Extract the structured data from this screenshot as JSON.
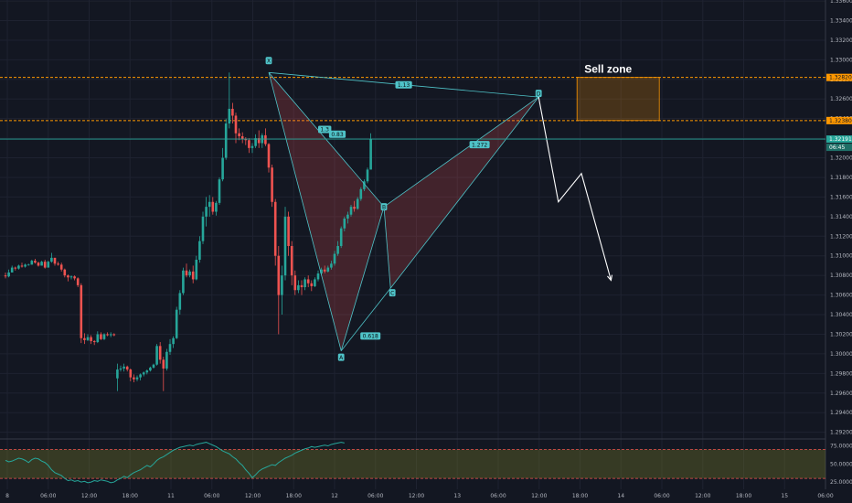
{
  "chart_data": {
    "type": "candlestick",
    "price_axis": {
      "ticks": [
        "1.33600",
        "1.33400",
        "1.33200",
        "1.33000",
        "1.32800",
        "1.32600",
        "1.32400",
        "1.32200",
        "1.32000",
        "1.31800",
        "1.31600",
        "1.31400",
        "1.31200",
        "1.31000",
        "1.30800",
        "1.30600",
        "1.30400",
        "1.30200",
        "1.30000",
        "1.29800",
        "1.29600",
        "1.29400",
        "1.29200"
      ],
      "range": [
        1.2915,
        1.3361
      ]
    },
    "time_axis": {
      "labels": [
        "8",
        "06:00",
        "12:00",
        "18:00",
        "11",
        "06:00",
        "12:00",
        "18:00",
        "12",
        "06:00",
        "12:00",
        "13",
        "06:00",
        "12:00",
        "18:00",
        "14",
        "06:00",
        "12:00",
        "18:00",
        "15",
        "06:00"
      ]
    },
    "sell_zone": {
      "title": "Sell zone",
      "upper": 1.3282,
      "lower": 1.3238,
      "upper_label": "1.32820",
      "lower_label": "1.32380"
    },
    "current_price": {
      "value": 1.32191,
      "label": "1.32191",
      "countdown": "06:45"
    },
    "pattern_labels": {
      "point_x": "X",
      "point_a": "A",
      "point_b": "B",
      "point_c": "C",
      "point_d": "D",
      "ratio_xb": "0.83",
      "ratio_ac": "0.618",
      "ratio_bd": "1.272",
      "ratio_xd": "1.13",
      "ratio_ab": "1.3"
    },
    "pattern_points": [
      {
        "name": "X",
        "bar": 80,
        "price": 1.3287
      },
      {
        "name": "A",
        "bar": 102,
        "price": 1.3003
      },
      {
        "name": "B",
        "bar": 115,
        "price": 1.315
      },
      {
        "name": "C",
        "bar": 117,
        "price": 1.3067
      },
      {
        "name": "D",
        "bar": 162,
        "price": 1.3262
      }
    ],
    "projection": [
      {
        "bar": 162,
        "price": 1.3262
      },
      {
        "bar": 168,
        "price": 1.3155
      },
      {
        "bar": 175,
        "price": 1.3184
      },
      {
        "bar": 184,
        "price": 1.3075
      }
    ],
    "candles": [
      [
        1.308,
        1.3083,
        1.3077,
        1.3079
      ],
      [
        1.3079,
        1.3086,
        1.3078,
        1.3083
      ],
      [
        1.3083,
        1.309,
        1.3083,
        1.3088
      ],
      [
        1.3088,
        1.3089,
        1.3085,
        1.3087
      ],
      [
        1.3087,
        1.3091,
        1.3086,
        1.309
      ],
      [
        1.309,
        1.3093,
        1.3088,
        1.3089
      ],
      [
        1.3089,
        1.3092,
        1.3088,
        1.3091
      ],
      [
        1.3091,
        1.3092,
        1.309,
        1.3091
      ],
      [
        1.3091,
        1.3096,
        1.3091,
        1.3095
      ],
      [
        1.3095,
        1.3097,
        1.3092,
        1.3093
      ],
      [
        1.3093,
        1.3094,
        1.3089,
        1.309
      ],
      [
        1.309,
        1.3095,
        1.309,
        1.3094
      ],
      [
        1.3094,
        1.3096,
        1.3087,
        1.3088
      ],
      [
        1.3088,
        1.3095,
        1.3088,
        1.3094
      ],
      [
        1.3094,
        1.3103,
        1.3093,
        1.3098
      ],
      [
        1.3098,
        1.3098,
        1.309,
        1.3092
      ],
      [
        1.3092,
        1.3094,
        1.309,
        1.3091
      ],
      [
        1.3091,
        1.3093,
        1.3084,
        1.3086
      ],
      [
        1.3086,
        1.3087,
        1.3078,
        1.308
      ],
      [
        1.308,
        1.3081,
        1.3074,
        1.3078
      ],
      [
        1.3078,
        1.308,
        1.3076,
        1.3079
      ],
      [
        1.3079,
        1.308,
        1.3075,
        1.3077
      ],
      [
        1.3077,
        1.3078,
        1.3068,
        1.307
      ],
      [
        1.307,
        1.3072,
        1.3011,
        1.3016
      ],
      [
        1.3016,
        1.3021,
        1.301,
        1.3014
      ],
      [
        1.3014,
        1.302,
        1.3013,
        1.3017
      ],
      [
        1.3017,
        1.3019,
        1.301,
        1.3013
      ],
      [
        1.3013,
        1.3014,
        1.3009,
        1.3012
      ],
      [
        1.3012,
        1.3023,
        1.3011,
        1.302
      ],
      [
        1.302,
        1.3022,
        1.3014,
        1.3015
      ],
      [
        1.3015,
        1.3021,
        1.3014,
        1.302
      ],
      [
        1.302,
        1.3022,
        1.3018,
        1.3019
      ],
      [
        1.3019,
        1.3022,
        1.3017,
        1.302
      ],
      [
        1.302,
        1.3021,
        1.3018,
        1.3019
      ],
      [
        1.2975,
        1.299,
        1.2962,
        1.2984
      ],
      [
        1.2984,
        1.2988,
        1.2982,
        1.2985
      ],
      [
        1.2985,
        1.299,
        1.2982,
        1.2987
      ],
      [
        1.2987,
        1.2988,
        1.2982,
        1.2984
      ],
      [
        1.2984,
        1.2985,
        1.2972,
        1.2976
      ],
      [
        1.2976,
        1.2979,
        1.2971,
        1.2974
      ],
      [
        1.2974,
        1.2978,
        1.2972,
        1.2976
      ],
      [
        1.2976,
        1.298,
        1.2973,
        1.2979
      ],
      [
        1.2979,
        1.2982,
        1.2977,
        1.2981
      ],
      [
        1.2981,
        1.2984,
        1.2979,
        1.2983
      ],
      [
        1.2983,
        1.2987,
        1.2982,
        1.2986
      ],
      [
        1.2986,
        1.299,
        1.2985,
        1.2989
      ],
      [
        1.2989,
        1.301,
        1.2988,
        1.3008
      ],
      [
        1.3008,
        1.3012,
        1.299,
        1.2994
      ],
      [
        1.2994,
        1.2997,
        1.2962,
        1.2985
      ],
      [
        1.2985,
        1.3005,
        1.2983,
        1.3002
      ],
      [
        1.3002,
        1.3015,
        1.2999,
        1.301
      ],
      [
        1.301,
        1.3018,
        1.3006,
        1.3016
      ],
      [
        1.3016,
        1.3048,
        1.3015,
        1.3045
      ],
      [
        1.3045,
        1.3065,
        1.304,
        1.3062
      ],
      [
        1.3062,
        1.3088,
        1.306,
        1.3085
      ],
      [
        1.3085,
        1.3092,
        1.3078,
        1.308
      ],
      [
        1.308,
        1.3086,
        1.3078,
        1.3084
      ],
      [
        1.3084,
        1.309,
        1.3072,
        1.3076
      ],
      [
        1.3076,
        1.31,
        1.3075,
        1.3096
      ],
      [
        1.3096,
        1.312,
        1.3093,
        1.3115
      ],
      [
        1.3115,
        1.3145,
        1.3112,
        1.314
      ],
      [
        1.314,
        1.316,
        1.313,
        1.315
      ],
      [
        1.315,
        1.3162,
        1.314,
        1.3155
      ],
      [
        1.3155,
        1.316,
        1.3142,
        1.3145
      ],
      [
        1.3145,
        1.3156,
        1.3141,
        1.3154
      ],
      [
        1.3154,
        1.318,
        1.3152,
        1.3178
      ],
      [
        1.3178,
        1.321,
        1.3176,
        1.32
      ],
      [
        1.32,
        1.324,
        1.3198,
        1.3235
      ],
      [
        1.3235,
        1.3287,
        1.323,
        1.325
      ],
      [
        1.325,
        1.3256,
        1.3235,
        1.3243
      ],
      [
        1.3243,
        1.3246,
        1.3215,
        1.3225
      ],
      [
        1.3225,
        1.323,
        1.3218,
        1.3222
      ],
      [
        1.3222,
        1.3226,
        1.3215,
        1.3219
      ],
      [
        1.3219,
        1.3221,
        1.3213,
        1.3218
      ],
      [
        1.3218,
        1.322,
        1.3205,
        1.321
      ],
      [
        1.321,
        1.3215,
        1.3205,
        1.3212
      ],
      [
        1.3212,
        1.3224,
        1.321,
        1.322
      ],
      [
        1.322,
        1.3228,
        1.321,
        1.3215
      ],
      [
        1.3215,
        1.3225,
        1.321,
        1.3223
      ],
      [
        1.3223,
        1.323,
        1.3212,
        1.3214
      ],
      [
        1.3214,
        1.3215,
        1.3185,
        1.319
      ],
      [
        1.319,
        1.3193,
        1.315,
        1.3155
      ],
      [
        1.3155,
        1.3158,
        1.309,
        1.31
      ],
      [
        1.31,
        1.311,
        1.302,
        1.306
      ],
      [
        1.306,
        1.309,
        1.304,
        1.308
      ],
      [
        1.308,
        1.315,
        1.3075,
        1.314
      ],
      [
        1.314,
        1.3145,
        1.31,
        1.311
      ],
      [
        1.311,
        1.3115,
        1.307,
        1.308
      ],
      [
        1.308,
        1.3085,
        1.306,
        1.3065
      ],
      [
        1.3065,
        1.3075,
        1.3062,
        1.307
      ],
      [
        1.307,
        1.3075,
        1.306,
        1.3068
      ],
      [
        1.3068,
        1.3078,
        1.3065,
        1.3076
      ],
      [
        1.3076,
        1.308,
        1.3068,
        1.3072
      ],
      [
        1.3072,
        1.3075,
        1.3064,
        1.3069
      ],
      [
        1.3069,
        1.3078,
        1.3068,
        1.3076
      ],
      [
        1.3076,
        1.3085,
        1.3074,
        1.3082
      ],
      [
        1.3082,
        1.3088,
        1.308,
        1.3086
      ],
      [
        1.3086,
        1.309,
        1.3082,
        1.3084
      ],
      [
        1.3084,
        1.309,
        1.3083,
        1.3088
      ],
      [
        1.3088,
        1.3095,
        1.3086,
        1.3092
      ],
      [
        1.3092,
        1.3105,
        1.309,
        1.3102
      ],
      [
        1.3102,
        1.3115,
        1.31,
        1.311
      ],
      [
        1.311,
        1.313,
        1.3108,
        1.3128
      ],
      [
        1.3128,
        1.314,
        1.3125,
        1.3138
      ],
      [
        1.3138,
        1.3145,
        1.3133,
        1.3142
      ],
      [
        1.3142,
        1.3152,
        1.314,
        1.315
      ],
      [
        1.315,
        1.3156,
        1.3145,
        1.3148
      ],
      [
        1.3148,
        1.316,
        1.3147,
        1.3158
      ],
      [
        1.3158,
        1.317,
        1.3156,
        1.3168
      ],
      [
        1.3168,
        1.3178,
        1.3166,
        1.3176
      ],
      [
        1.3176,
        1.319,
        1.3174,
        1.3188
      ],
      [
        1.3188,
        1.3225,
        1.3188,
        1.32191
      ]
    ],
    "rsi": {
      "ticks": [
        "75.0000",
        "50.0000",
        "25.0000"
      ],
      "range": [
        15,
        82
      ],
      "overbought": 70,
      "oversold": 30,
      "values": [
        55,
        53,
        54,
        56,
        58,
        57,
        55,
        52,
        56,
        58,
        57,
        54,
        52,
        48,
        42,
        38,
        36,
        34,
        30,
        27,
        28,
        26,
        27,
        25,
        26,
        24,
        25,
        27,
        26,
        28,
        27,
        26,
        24,
        25,
        28,
        30,
        33,
        31,
        35,
        38,
        40,
        42,
        45,
        48,
        46,
        50,
        55,
        58,
        60,
        63,
        66,
        69,
        71,
        73,
        74,
        75,
        76,
        75,
        77,
        78,
        79,
        80,
        78,
        76,
        74,
        71,
        68,
        66,
        64,
        60,
        57,
        52,
        48,
        42,
        37,
        31,
        35,
        40,
        43,
        45,
        47,
        49,
        48,
        52,
        55,
        58,
        60,
        62,
        65,
        67,
        69,
        71,
        72,
        74,
        73,
        74,
        75,
        76,
        75,
        77,
        78,
        79,
        80,
        79
      ]
    }
  }
}
